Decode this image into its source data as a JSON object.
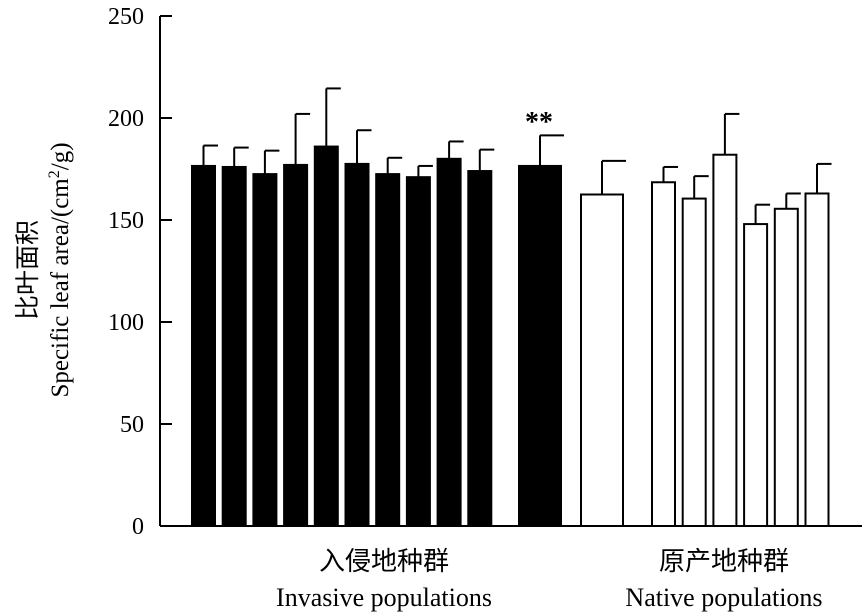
{
  "chart_data": {
    "type": "bar",
    "ylabel_cn": "比叶面积",
    "ylabel_en_prefix": "Specific leaf area/(cm",
    "ylabel_en_sup": "2",
    "ylabel_en_suffix": "/g)",
    "ylim": [
      0,
      250
    ],
    "yticks": [
      0,
      50,
      100,
      150,
      200,
      250
    ],
    "grid": false,
    "groups": [
      {
        "label_cn": "入侵地种群",
        "label_en": "Invasive populations"
      },
      {
        "label_cn": "原产地种群",
        "label_en": "Native populations"
      }
    ],
    "series": [
      {
        "fill": "black",
        "values": [
          176.5,
          176,
          172.5,
          177,
          186,
          177.5,
          172.5,
          171,
          180,
          174
        ],
        "errors": [
          10,
          9.5,
          11.5,
          25,
          28.5,
          16.5,
          8,
          5.5,
          8.5,
          10.5
        ]
      },
      {
        "fill": "black",
        "values": [
          176.5
        ],
        "errors": [
          15
        ],
        "annotation": "**"
      },
      {
        "fill": "white",
        "values": [
          162.5
        ],
        "errors": [
          16.5
        ]
      },
      {
        "fill": "white",
        "values": [
          168.5,
          160.5,
          182,
          148,
          155.5,
          163
        ],
        "errors": [
          7.5,
          11,
          20,
          9.5,
          7.5,
          14.5
        ]
      }
    ]
  }
}
